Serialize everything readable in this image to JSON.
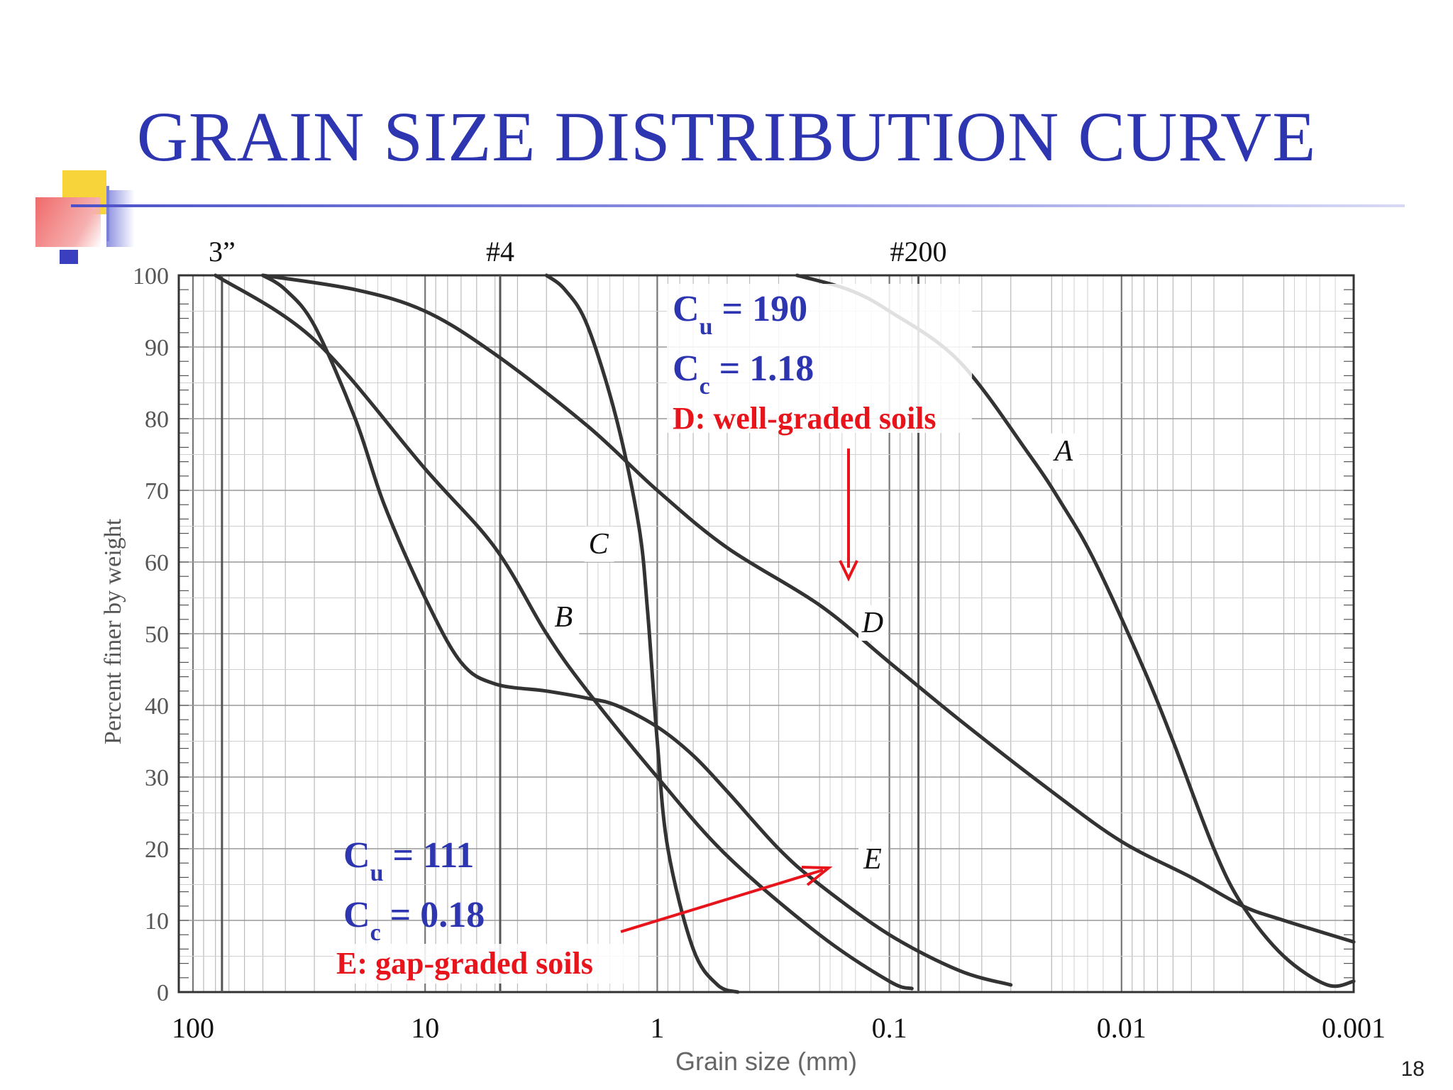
{
  "slide": {
    "title": "GRAIN SIZE DISTRIBUTION CURVE",
    "page_number": "18",
    "accent_color": "#2e35b0",
    "annotation_color": "#e8141c"
  },
  "chart_data": {
    "type": "line",
    "title": "",
    "xlabel": "Grain size (mm)",
    "ylabel": "Percent finer by weight",
    "x_scale": "log",
    "x_reversed": true,
    "xlim": [
      150,
      0.001
    ],
    "ylim": [
      0,
      100
    ],
    "grid": true,
    "x_ticks": [
      {
        "value": 100,
        "label": "100"
      },
      {
        "value": 10,
        "label": "10"
      },
      {
        "value": 1,
        "label": "1"
      },
      {
        "value": 0.1,
        "label": "0.1"
      },
      {
        "value": 0.01,
        "label": "0.01"
      },
      {
        "value": 0.001,
        "label": "0.001"
      }
    ],
    "y_ticks": [
      0,
      10,
      20,
      30,
      40,
      50,
      60,
      70,
      80,
      90,
      100
    ],
    "sieve_markers": [
      {
        "value": 75,
        "label": "3”"
      },
      {
        "value": 4.75,
        "label": "#4"
      },
      {
        "value": 0.075,
        "label": "#200"
      }
    ],
    "series": [
      {
        "name": "A",
        "x": [
          0.25,
          0.15,
          0.1,
          0.05,
          0.025,
          0.018,
          0.013,
          0.008,
          0.006,
          0.004,
          0.003,
          0.002,
          0.0013,
          0.001
        ],
        "y": [
          100,
          98,
          95,
          88,
          75,
          68,
          60,
          45,
          35,
          20,
          12,
          5,
          1,
          1.5
        ]
      },
      {
        "name": "B",
        "x": [
          80,
          30,
          10,
          5,
          3,
          2,
          1,
          0.5,
          0.2,
          0.1,
          0.08
        ],
        "y": [
          100,
          91,
          73,
          62,
          50,
          42,
          30,
          19,
          8,
          1.5,
          0.5
        ]
      },
      {
        "name": "C",
        "x": [
          3,
          2.5,
          2,
          1.5,
          1.2,
          1.1,
          1,
          0.9,
          0.7,
          0.55,
          0.45
        ],
        "y": [
          100,
          98,
          93,
          80,
          65,
          53,
          35,
          20,
          6,
          1,
          0
        ]
      },
      {
        "name": "D",
        "x": [
          50,
          20,
          10,
          5,
          2,
          1,
          0.5,
          0.2,
          0.1,
          0.05,
          0.02,
          0.01,
          0.005,
          0.003,
          0.002,
          0.001
        ],
        "y": [
          100,
          98,
          95,
          89,
          79,
          70,
          62,
          54,
          46,
          38,
          28,
          21,
          16,
          12,
          10,
          7
        ]
      },
      {
        "name": "E",
        "x": [
          50,
          40,
          30,
          20,
          15,
          10,
          7,
          5,
          3,
          2,
          1.5,
          1,
          0.7,
          0.5,
          0.3,
          0.2,
          0.1,
          0.05,
          0.03
        ],
        "y": [
          100,
          98,
          93,
          80,
          68,
          55,
          46,
          43,
          42,
          41,
          40,
          37,
          33,
          28,
          20,
          15,
          8,
          3,
          1
        ]
      }
    ],
    "curve_labels": [
      {
        "series": "A",
        "text": "A"
      },
      {
        "series": "B",
        "text": "B"
      },
      {
        "series": "C",
        "text": "C"
      },
      {
        "series": "D",
        "text": "D"
      },
      {
        "series": "E",
        "text": "E"
      }
    ],
    "annotations": {
      "D": {
        "cu": "190",
        "cc": "1.18",
        "label": "D: well-graded soils"
      },
      "E": {
        "cu": "111",
        "cc": "0.18",
        "label": "E: gap-graded soils"
      }
    }
  }
}
